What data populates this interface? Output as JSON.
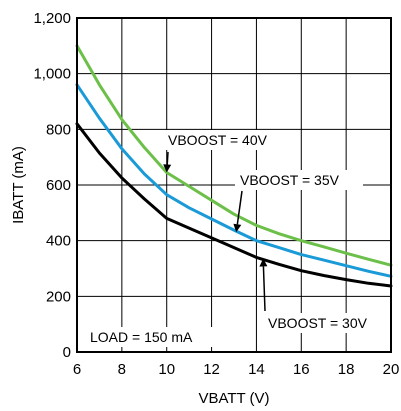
{
  "chart_data": {
    "type": "line",
    "xlabel": "VBATT (V)",
    "ylabel": "IBATT (mA)",
    "xlim": [
      6,
      20
    ],
    "ylim": [
      0,
      1200
    ],
    "x_ticks": [
      6,
      8,
      10,
      12,
      14,
      16,
      18,
      20
    ],
    "y_ticks": [
      0,
      200,
      400,
      600,
      800,
      1000,
      1200
    ],
    "x_tick_labels": [
      "6",
      "8",
      "10",
      "12",
      "14",
      "16",
      "18",
      "20"
    ],
    "y_tick_labels": [
      "0",
      "200",
      "400",
      "600",
      "800",
      "1,000",
      "1,200"
    ],
    "grid": true,
    "series": [
      {
        "label": "VBOOST = 40V",
        "color": "#6cc04a",
        "x": [
          6,
          7,
          8,
          9,
          10,
          11,
          12,
          13,
          14,
          15,
          16,
          17,
          18,
          19,
          20
        ],
        "y": [
          1100,
          960,
          835,
          735,
          645,
          595,
          545,
          495,
          455,
          425,
          400,
          378,
          355,
          333,
          312
        ]
      },
      {
        "label": "VBOOST = 35V",
        "color": "#1a9ad6",
        "x": [
          6,
          7,
          8,
          9,
          10,
          11,
          12,
          13,
          14,
          15,
          16,
          17,
          18,
          19,
          20
        ],
        "y": [
          960,
          840,
          730,
          640,
          565,
          518,
          478,
          438,
          400,
          375,
          350,
          330,
          310,
          290,
          272
        ]
      },
      {
        "label": "VBOOST = 30V",
        "color": "#000000",
        "x": [
          6,
          7,
          8,
          9,
          10,
          11,
          12,
          13,
          14,
          15,
          16,
          17,
          18,
          19,
          20
        ],
        "y": [
          820,
          715,
          625,
          550,
          480,
          445,
          410,
          375,
          340,
          315,
          292,
          275,
          260,
          247,
          237
        ]
      }
    ],
    "annotations": [
      {
        "text": "VBOOST = 40V",
        "target_x": 10,
        "target_y": 645
      },
      {
        "text": "VBOOST = 35V",
        "target_x": 13.1,
        "target_y": 430
      },
      {
        "text": "VBOOST = 30V",
        "target_x": 14.3,
        "target_y": 336
      },
      {
        "text": "LOAD = 150 mA"
      }
    ]
  }
}
